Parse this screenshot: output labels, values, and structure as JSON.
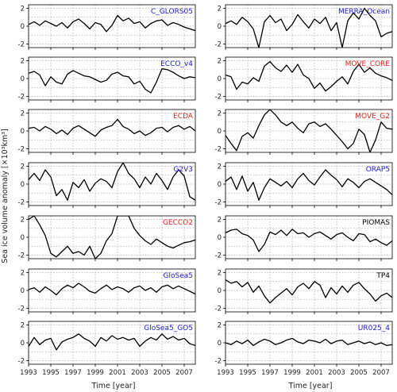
{
  "figure": {
    "ylabel": "Sea ice volume anomaly [×10³km³]",
    "xlabel": "Time [year]"
  },
  "chart_data": {
    "type": "line",
    "x_ticks": [
      "1993",
      "1995",
      "1997",
      "1999",
      "2001",
      "2003",
      "2005",
      "2007"
    ],
    "y_ticks": [
      "-2",
      "0",
      "2"
    ],
    "xlim": [
      1993,
      2008
    ],
    "ylim": [
      -2.4,
      2.4
    ],
    "grid": true,
    "line_color": "#000000",
    "panels": [
      {
        "label": "C_GLORS05",
        "label_color": "#1a1acc",
        "x": [
          1993.0,
          1993.5,
          1994.0,
          1994.5,
          1995.0,
          1995.5,
          1996.0,
          1996.5,
          1997.0,
          1997.5,
          1998.0,
          1998.5,
          1999.0,
          1999.5,
          2000.0,
          2000.5,
          2001.0,
          2001.5,
          2002.0,
          2002.5,
          2003.0,
          2003.5,
          2004.0,
          2004.5,
          2005.0,
          2005.5,
          2006.0,
          2006.5,
          2007.0,
          2007.5,
          2008.0
        ],
        "y": [
          0.2,
          0.5,
          0.1,
          0.6,
          0.3,
          0.0,
          0.4,
          -0.2,
          0.5,
          0.8,
          0.3,
          -0.3,
          0.4,
          0.2,
          -0.6,
          0.1,
          1.2,
          0.6,
          0.9,
          0.3,
          0.5,
          -0.2,
          0.3,
          0.6,
          0.7,
          0.1,
          0.4,
          0.2,
          -0.1,
          -0.3,
          -0.5
        ]
      },
      {
        "label": "MERRA_Ocean",
        "label_color": "#1a1acc",
        "x": [
          1993.0,
          1993.5,
          1994.0,
          1994.5,
          1995.0,
          1995.5,
          1996.0,
          1996.5,
          1997.0,
          1997.5,
          1998.0,
          1998.5,
          1999.0,
          1999.5,
          2000.0,
          2000.5,
          2001.0,
          2001.5,
          2002.0,
          2002.5,
          2003.0,
          2003.5,
          2004.0,
          2004.5,
          2005.0,
          2005.5,
          2006.0,
          2006.5,
          2007.0,
          2007.5,
          2008.0
        ],
        "y": [
          0.3,
          0.6,
          0.2,
          1.0,
          0.5,
          -0.3,
          -2.4,
          0.5,
          1.2,
          0.4,
          0.8,
          -0.5,
          0.2,
          1.3,
          0.5,
          -0.2,
          0.8,
          0.3,
          1.0,
          -0.5,
          0.4,
          -2.4,
          0.6,
          1.5,
          0.8,
          2.0,
          1.2,
          0.6,
          -1.2,
          -0.8,
          -0.6
        ]
      },
      {
        "label": "ECCO_v4",
        "label_color": "#1a1acc",
        "x": [
          1993.0,
          1993.5,
          1994.0,
          1994.5,
          1995.0,
          1995.5,
          1996.0,
          1996.5,
          1997.0,
          1997.5,
          1998.0,
          1998.5,
          1999.0,
          1999.5,
          2000.0,
          2000.5,
          2001.0,
          2001.5,
          2002.0,
          2002.5,
          2003.0,
          2003.5,
          2004.0,
          2004.5,
          2005.0,
          2005.5,
          2006.0,
          2006.5,
          2007.0,
          2007.5,
          2008.0
        ],
        "y": [
          0.6,
          0.8,
          0.4,
          -0.8,
          0.2,
          -0.4,
          -0.6,
          0.5,
          0.9,
          0.6,
          0.3,
          0.2,
          -0.1,
          -0.4,
          -0.2,
          0.5,
          0.7,
          0.3,
          0.2,
          -0.6,
          -0.3,
          -1.2,
          -1.6,
          -0.4,
          1.1,
          1.0,
          0.7,
          0.3,
          0.0,
          0.2,
          0.1
        ]
      },
      {
        "label": "MOVE_CORE",
        "label_color": "#e62020",
        "x": [
          1993.0,
          1993.5,
          1994.0,
          1994.5,
          1995.0,
          1995.5,
          1996.0,
          1996.5,
          1997.0,
          1997.5,
          1998.0,
          1998.5,
          1999.0,
          1999.5,
          2000.0,
          2000.5,
          2001.0,
          2001.5,
          2002.0,
          2002.5,
          2003.0,
          2003.5,
          2004.0,
          2004.5,
          2005.0,
          2005.5,
          2006.0,
          2006.5,
          2007.0,
          2007.5,
          2008.0
        ],
        "y": [
          0.4,
          0.2,
          -1.2,
          -0.4,
          -0.6,
          0.1,
          -0.3,
          1.4,
          1.9,
          1.2,
          0.8,
          1.5,
          0.7,
          1.6,
          0.4,
          0.0,
          -1.1,
          -0.5,
          -1.4,
          -0.9,
          -0.3,
          0.2,
          -0.6,
          0.8,
          1.6,
          0.7,
          1.2,
          0.6,
          0.3,
          0.1,
          -0.2
        ]
      },
      {
        "label": "ECDA",
        "label_color": "#e62020",
        "x": [
          1993.0,
          1993.5,
          1994.0,
          1994.5,
          1995.0,
          1995.5,
          1996.0,
          1996.5,
          1997.0,
          1997.5,
          1998.0,
          1998.5,
          1999.0,
          1999.5,
          2000.0,
          2000.5,
          2001.0,
          2001.5,
          2002.0,
          2002.5,
          2003.0,
          2003.5,
          2004.0,
          2004.5,
          2005.0,
          2005.5,
          2006.0,
          2006.5,
          2007.0,
          2007.5,
          2008.0
        ],
        "y": [
          0.3,
          0.4,
          0.0,
          0.5,
          0.2,
          -0.3,
          0.1,
          -0.4,
          0.3,
          0.6,
          0.2,
          -0.2,
          -0.6,
          0.1,
          0.4,
          0.6,
          1.3,
          0.5,
          0.2,
          -0.3,
          0.0,
          -0.5,
          -0.2,
          0.3,
          0.4,
          -0.1,
          0.4,
          0.6,
          0.2,
          0.5,
          0.0
        ]
      },
      {
        "label": "MOVE_G2",
        "label_color": "#e62020",
        "x": [
          1993.0,
          1993.5,
          1994.0,
          1994.5,
          1995.0,
          1995.5,
          1996.0,
          1996.5,
          1997.0,
          1997.5,
          1998.0,
          1998.5,
          1999.0,
          1999.5,
          2000.0,
          2000.5,
          2001.0,
          2001.5,
          2002.0,
          2002.5,
          2003.0,
          2003.5,
          2004.0,
          2004.5,
          2005.0,
          2005.5,
          2006.0,
          2006.5,
          2007.0,
          2007.5,
          2008.0
        ],
        "y": [
          -0.5,
          -1.4,
          -2.2,
          -0.6,
          -0.2,
          -0.8,
          0.6,
          1.8,
          2.4,
          1.8,
          1.0,
          0.6,
          1.0,
          0.3,
          -0.2,
          0.8,
          1.0,
          0.5,
          0.8,
          0.2,
          -0.5,
          -1.2,
          -2.0,
          -1.4,
          0.2,
          -0.4,
          -2.4,
          -1.0,
          1.0,
          0.3,
          0.2
        ]
      },
      {
        "label": "G2V3",
        "label_color": "#1a1acc",
        "x": [
          1993.0,
          1993.5,
          1994.0,
          1994.5,
          1995.0,
          1995.5,
          1996.0,
          1996.5,
          1997.0,
          1997.5,
          1998.0,
          1998.5,
          1999.0,
          1999.5,
          2000.0,
          2000.5,
          2001.0,
          2001.5,
          2002.0,
          2002.5,
          2003.0,
          2003.5,
          2004.0,
          2004.5,
          2005.0,
          2005.5,
          2006.0,
          2006.5,
          2007.0,
          2007.5,
          2008.0
        ],
        "y": [
          0.5,
          1.2,
          0.4,
          1.6,
          0.8,
          -1.3,
          -0.6,
          -1.8,
          0.2,
          -0.4,
          0.5,
          -0.8,
          0.1,
          0.6,
          0.3,
          -0.4,
          1.4,
          2.4,
          1.2,
          0.6,
          -0.4,
          0.8,
          0.0,
          1.2,
          0.4,
          -0.6,
          0.8,
          1.6,
          0.9,
          -1.4,
          -1.8
        ]
      },
      {
        "label": "ORAP5",
        "label_color": "#1a1acc",
        "x": [
          1993.0,
          1993.5,
          1994.0,
          1994.5,
          1995.0,
          1995.5,
          1996.0,
          1996.5,
          1997.0,
          1997.5,
          1998.0,
          1998.5,
          1999.0,
          1999.5,
          2000.0,
          2000.5,
          2001.0,
          2001.5,
          2002.0,
          2002.5,
          2003.0,
          2003.5,
          2004.0,
          2004.5,
          2005.0,
          2005.5,
          2006.0,
          2006.5,
          2007.0,
          2007.5,
          2008.0
        ],
        "y": [
          0.3,
          0.8,
          -0.6,
          0.9,
          -0.8,
          0.2,
          -1.8,
          -0.4,
          0.6,
          0.2,
          -0.2,
          0.3,
          -0.4,
          0.6,
          1.2,
          0.4,
          -0.1,
          0.8,
          1.6,
          1.0,
          0.5,
          -0.3,
          0.6,
          0.2,
          -0.4,
          0.3,
          0.6,
          0.2,
          -0.2,
          -0.6,
          -1.2
        ]
      },
      {
        "label": "GECCO2",
        "label_color": "#e62020",
        "x": [
          1993.0,
          1993.5,
          1994.0,
          1994.5,
          1995.0,
          1995.5,
          1996.0,
          1996.5,
          1997.0,
          1997.5,
          1998.0,
          1998.5,
          1999.0,
          1999.5,
          2000.0,
          2000.5,
          2001.0,
          2001.5,
          2002.0,
          2002.5,
          2003.0,
          2003.5,
          2004.0,
          2004.5,
          2005.0,
          2005.5,
          2006.0,
          2006.5,
          2007.0,
          2007.5,
          2008.0
        ],
        "y": [
          2.0,
          2.4,
          1.4,
          0.2,
          -1.8,
          -2.2,
          -1.6,
          -1.0,
          -1.8,
          -1.6,
          -2.0,
          -1.0,
          -2.4,
          -1.8,
          -0.4,
          0.4,
          2.4,
          2.4,
          2.4,
          1.0,
          0.2,
          -0.4,
          -0.8,
          -0.2,
          -0.6,
          -1.0,
          -1.2,
          -0.9,
          -0.6,
          -0.5,
          -0.3
        ]
      },
      {
        "label": "PIOMAS",
        "label_color": "#000000",
        "x": [
          1993.0,
          1993.5,
          1994.0,
          1994.5,
          1995.0,
          1995.5,
          1996.0,
          1996.5,
          1997.0,
          1997.5,
          1998.0,
          1998.5,
          1999.0,
          1999.5,
          2000.0,
          2000.5,
          2001.0,
          2001.5,
          2002.0,
          2002.5,
          2003.0,
          2003.5,
          2004.0,
          2004.5,
          2005.0,
          2005.5,
          2006.0,
          2006.5,
          2007.0,
          2007.5,
          2008.0
        ],
        "y": [
          0.5,
          0.8,
          0.9,
          0.4,
          0.2,
          -0.3,
          -1.6,
          -0.8,
          0.6,
          0.3,
          0.8,
          0.2,
          0.9,
          0.4,
          0.5,
          0.0,
          0.4,
          0.6,
          0.2,
          -0.2,
          0.3,
          0.5,
          0.0,
          -0.4,
          0.4,
          0.3,
          -0.5,
          -0.2,
          -0.6,
          -0.9,
          -0.4
        ]
      },
      {
        "label": "GloSea5",
        "label_color": "#1a1acc",
        "x": [
          1993.0,
          1993.5,
          1994.0,
          1994.5,
          1995.0,
          1995.5,
          1996.0,
          1996.5,
          1997.0,
          1997.5,
          1998.0,
          1998.5,
          1999.0,
          1999.5,
          2000.0,
          2000.5,
          2001.0,
          2001.5,
          2002.0,
          2002.5,
          2003.0,
          2003.5,
          2004.0,
          2004.5,
          2005.0,
          2005.5,
          2006.0,
          2006.5,
          2007.0,
          2007.5,
          2008.0
        ],
        "y": [
          0.1,
          0.3,
          -0.2,
          0.4,
          0.0,
          -0.5,
          0.2,
          0.6,
          0.3,
          0.8,
          0.4,
          -0.1,
          -0.3,
          0.2,
          0.6,
          0.1,
          0.4,
          0.2,
          -0.2,
          0.3,
          0.5,
          0.0,
          0.3,
          -0.2,
          0.4,
          0.6,
          0.2,
          0.5,
          0.2,
          -0.1,
          -0.4
        ]
      },
      {
        "label": "TP4",
        "label_color": "#000000",
        "x": [
          1993.0,
          1993.5,
          1994.0,
          1994.5,
          1995.0,
          1995.5,
          1996.0,
          1996.5,
          1997.0,
          1997.5,
          1998.0,
          1998.5,
          1999.0,
          1999.5,
          2000.0,
          2000.5,
          2001.0,
          2001.5,
          2002.0,
          2002.5,
          2003.0,
          2003.5,
          2004.0,
          2004.5,
          2005.0,
          2005.5,
          2006.0,
          2006.5,
          2007.0,
          2007.5,
          2008.0
        ],
        "y": [
          1.2,
          0.8,
          1.0,
          0.4,
          0.9,
          -0.2,
          0.5,
          -0.6,
          -1.4,
          -0.8,
          -0.3,
          0.2,
          -0.5,
          0.4,
          0.8,
          0.2,
          1.0,
          0.6,
          -0.8,
          0.3,
          -0.4,
          0.5,
          -0.2,
          0.6,
          0.9,
          0.2,
          -0.4,
          -1.2,
          -0.6,
          -0.3,
          -0.8
        ]
      },
      {
        "label": "GloSea5_GO5",
        "label_color": "#1a1acc",
        "x": [
          1993.0,
          1993.5,
          1994.0,
          1994.5,
          1995.0,
          1995.5,
          1996.0,
          1996.5,
          1997.0,
          1997.5,
          1998.0,
          1998.5,
          1999.0,
          1999.5,
          2000.0,
          2000.5,
          2001.0,
          2001.5,
          2002.0,
          2002.5,
          2003.0,
          2003.5,
          2004.0,
          2004.5,
          2005.0,
          2005.5,
          2006.0,
          2006.5,
          2007.0,
          2007.5,
          2008.0
        ],
        "y": [
          -0.4,
          0.6,
          -0.2,
          0.3,
          0.5,
          -0.8,
          0.1,
          0.4,
          0.6,
          1.0,
          0.5,
          0.2,
          -0.4,
          0.6,
          0.2,
          0.8,
          0.4,
          0.6,
          0.3,
          0.5,
          -0.4,
          0.2,
          0.6,
          0.3,
          1.0,
          0.4,
          0.7,
          0.3,
          0.5,
          -0.1,
          -0.3
        ]
      },
      {
        "label": "UR025_4",
        "label_color": "#1a1acc",
        "x": [
          1993.0,
          1993.5,
          1994.0,
          1994.5,
          1995.0,
          1995.5,
          1996.0,
          1996.5,
          1997.0,
          1997.5,
          1998.0,
          1998.5,
          1999.0,
          1999.5,
          2000.0,
          2000.5,
          2001.0,
          2001.5,
          2002.0,
          2002.5,
          2003.0,
          2003.5,
          2004.0,
          2004.5,
          2005.0,
          2005.5,
          2006.0,
          2006.5,
          2007.0,
          2007.5,
          2008.0
        ],
        "y": [
          0.0,
          -0.2,
          0.2,
          -0.1,
          0.3,
          -0.3,
          0.1,
          0.4,
          0.2,
          -0.2,
          0.0,
          0.3,
          0.5,
          0.1,
          -0.1,
          0.3,
          0.2,
          0.0,
          0.4,
          -0.1,
          0.2,
          0.3,
          -0.2,
          0.0,
          0.2,
          -0.1,
          0.1,
          -0.2,
          0.0,
          -0.3,
          -0.2
        ]
      }
    ]
  }
}
